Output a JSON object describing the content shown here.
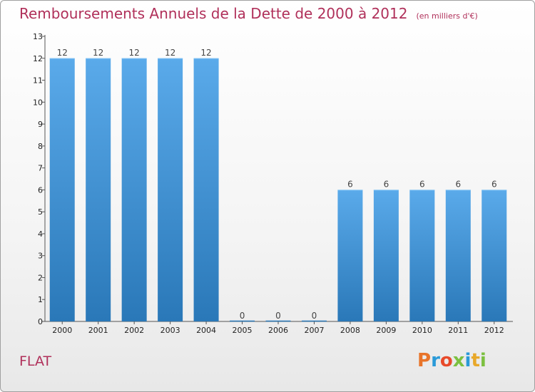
{
  "chart_data": {
    "type": "bar",
    "title": "Remboursements Annuels de la Dette de 2000 à 2012",
    "subtitle": "(en milliers d'€)",
    "categories": [
      "2000",
      "2001",
      "2002",
      "2003",
      "2004",
      "2005",
      "2006",
      "2007",
      "2008",
      "2009",
      "2010",
      "2011",
      "2012"
    ],
    "values": [
      12,
      12,
      12,
      12,
      12,
      0,
      0,
      0,
      6,
      6,
      6,
      6,
      6
    ],
    "ylim": [
      0,
      13
    ],
    "yticks": [
      0,
      1,
      2,
      3,
      4,
      5,
      6,
      7,
      8,
      9,
      10,
      11,
      12,
      13
    ],
    "xlabel": "",
    "ylabel": "",
    "grid": false,
    "bar_color_top": "#5aaaea",
    "bar_color_bottom": "#2a78b8"
  },
  "footer": {
    "commune": "FLAT",
    "brand": "Proxiti",
    "brand_colors": [
      "#e8742a",
      "#2a9ad8",
      "#e84a2a",
      "#7cc040",
      "#2a9ad8",
      "#e8a82a",
      "#7cc040"
    ]
  }
}
